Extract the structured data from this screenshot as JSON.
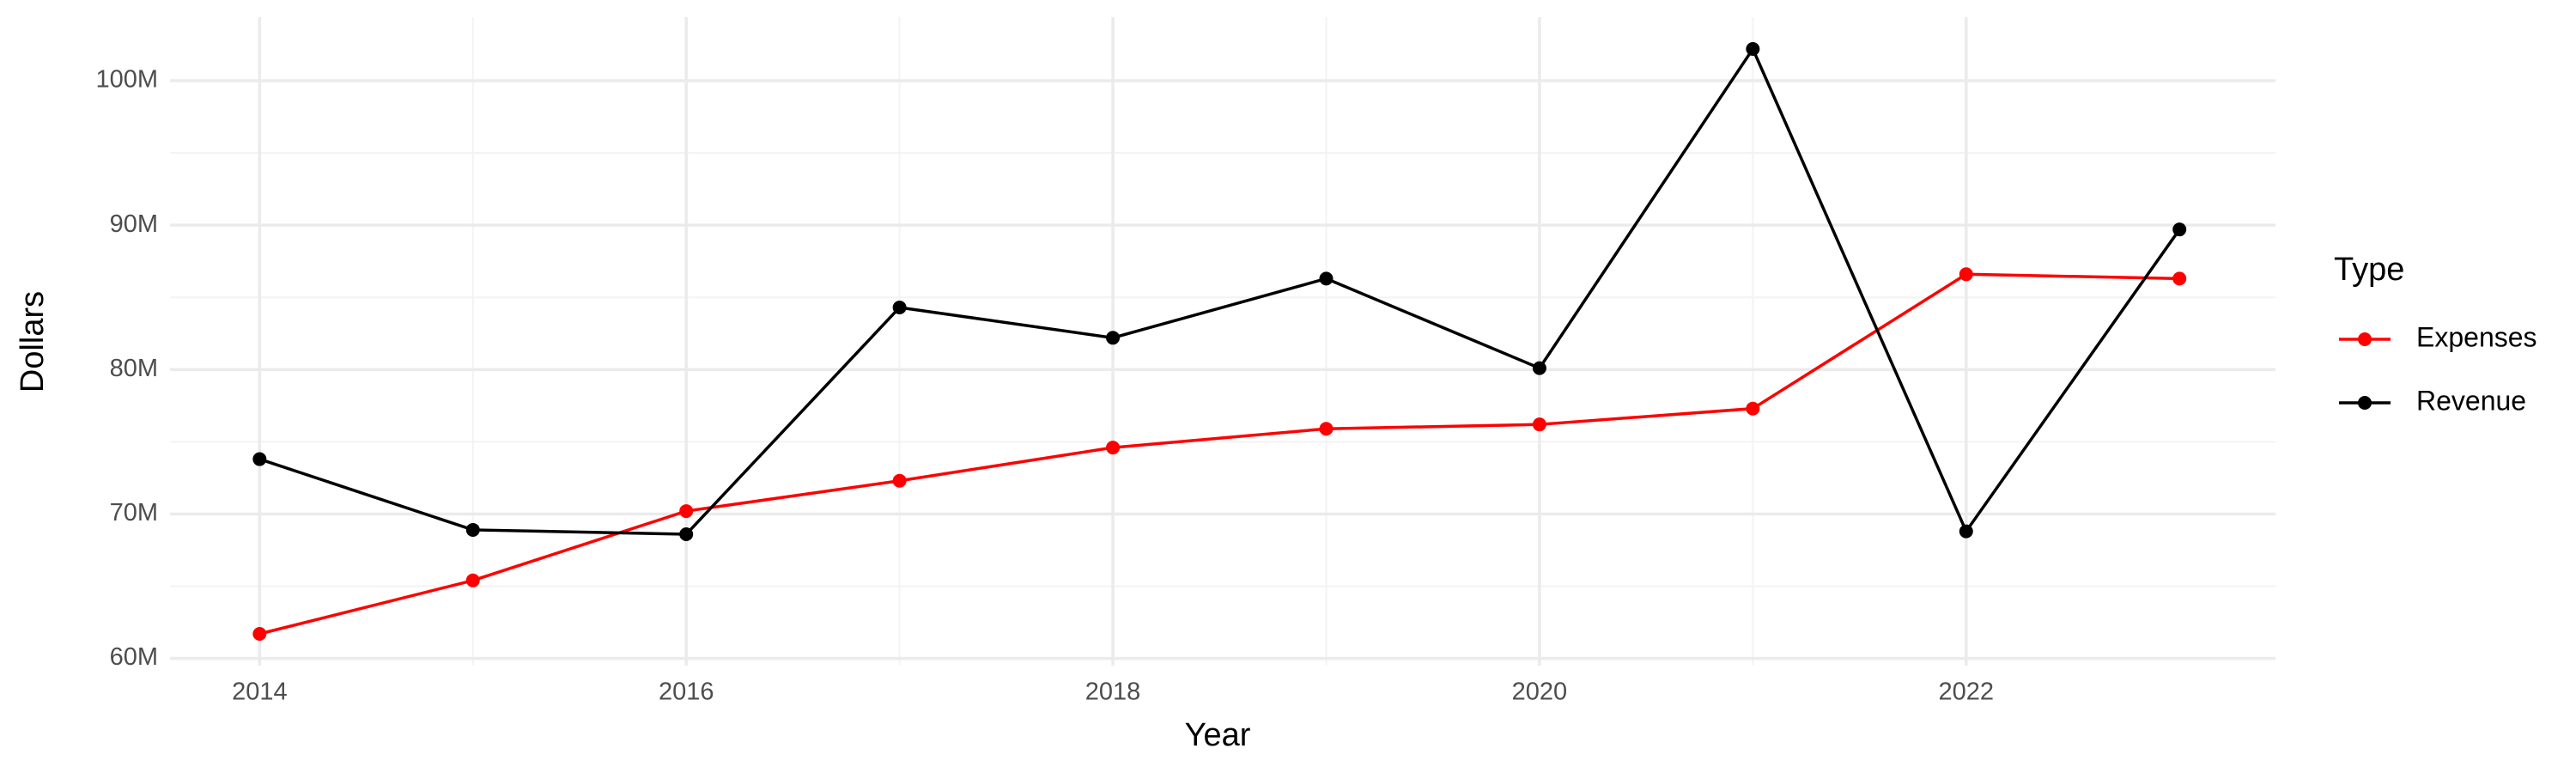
{
  "chart_data": {
    "type": "line",
    "x_label": "Year",
    "y_label": "Dollars",
    "legend_title": "Type",
    "x": [
      2014,
      2015,
      2016,
      2017,
      2018,
      2019,
      2020,
      2021,
      2022,
      2023
    ],
    "series": [
      {
        "name": "Expenses",
        "color": "#ff0000",
        "values": [
          61700000,
          65400000,
          70200000,
          72300000,
          74600000,
          75900000,
          76200000,
          77300000,
          86600000,
          86300000
        ]
      },
      {
        "name": "Revenue",
        "color": "#000000",
        "values": [
          73800000,
          68900000,
          68600000,
          84300000,
          82200000,
          86300000,
          80100000,
          102200000,
          68800000,
          89700000
        ]
      }
    ],
    "xlim": [
      2013.58,
      2023.45
    ],
    "xticks": [
      2014,
      2016,
      2018,
      2020,
      2022
    ],
    "ylim": [
      59500000,
      104400000
    ],
    "yticks": [
      {
        "value": 60000000,
        "label": "60M"
      },
      {
        "value": 70000000,
        "label": "70M"
      },
      {
        "value": 80000000,
        "label": "80M"
      },
      {
        "value": 90000000,
        "label": "90M"
      },
      {
        "value": 100000000,
        "label": "100M"
      }
    ],
    "grid": true,
    "legend": "right"
  }
}
